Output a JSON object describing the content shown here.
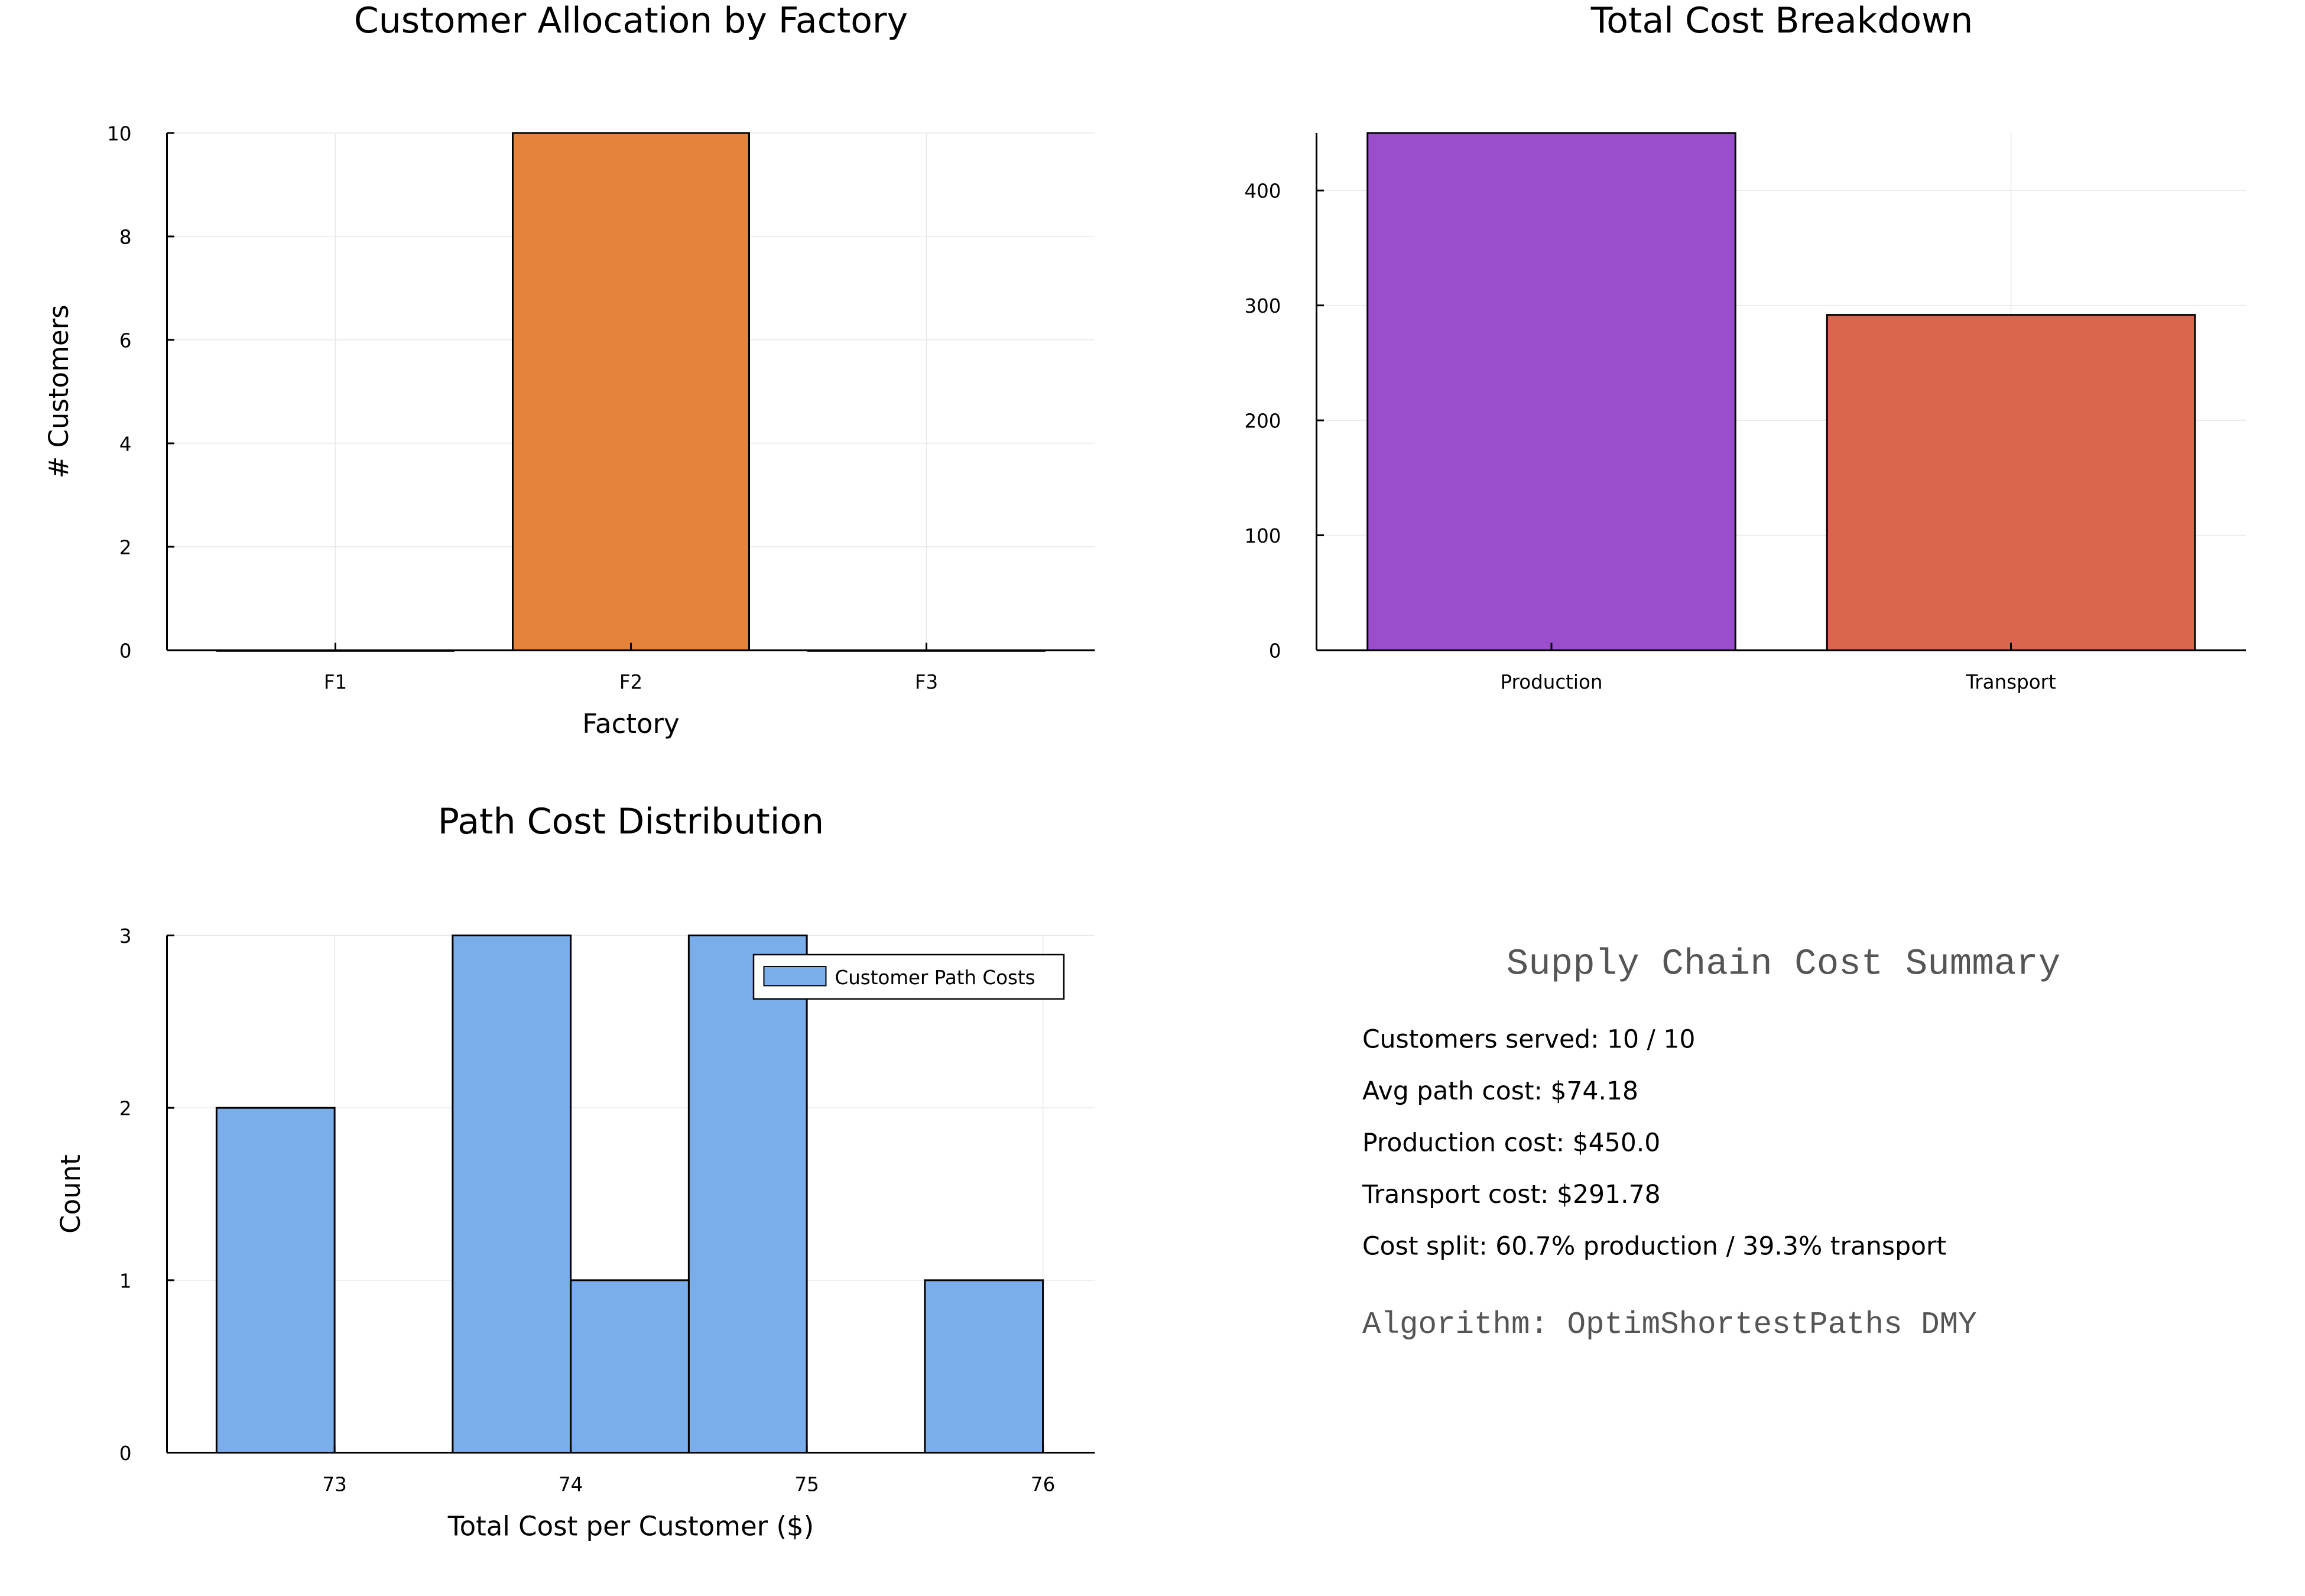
{
  "chart_data": [
    {
      "type": "bar",
      "title": "Customer Allocation by Factory",
      "xlabel": "Factory",
      "ylabel": "# Customers",
      "categories": [
        "F1",
        "F2",
        "F3"
      ],
      "values": [
        0,
        10,
        0
      ],
      "ylim": [
        0,
        10
      ],
      "yticks": [
        0,
        2,
        4,
        6,
        8,
        10
      ],
      "color": "#e6833a",
      "grid": true
    },
    {
      "type": "bar",
      "title": "Total Cost Breakdown",
      "xlabel": "",
      "ylabel": "",
      "categories": [
        "Production",
        "Transport"
      ],
      "values": [
        450.0,
        291.78
      ],
      "colors": [
        "#9a4ecc",
        "#d9664d"
      ],
      "ylim": [
        0,
        450
      ],
      "yticks": [
        0,
        100,
        200,
        300,
        400
      ],
      "grid": true
    },
    {
      "type": "histogram",
      "title": "Path Cost Distribution",
      "xlabel": "Total Cost per Customer ($)",
      "ylabel": "Count",
      "bins": [
        {
          "from": 72.5,
          "to": 73.0,
          "count": 2
        },
        {
          "from": 73.0,
          "to": 73.5,
          "count": 0
        },
        {
          "from": 73.5,
          "to": 74.0,
          "count": 3
        },
        {
          "from": 74.0,
          "to": 74.5,
          "count": 1
        },
        {
          "from": 74.5,
          "to": 75.0,
          "count": 3
        },
        {
          "from": 75.0,
          "to": 75.5,
          "count": 0
        },
        {
          "from": 75.5,
          "to": 76.0,
          "count": 1
        }
      ],
      "xlim": [
        72.29,
        76.22
      ],
      "ylim": [
        0,
        3
      ],
      "xticks": [
        73,
        74,
        75,
        76
      ],
      "yticks": [
        0,
        1,
        2,
        3
      ],
      "legend": {
        "entries": [
          "Customer Path Costs"
        ],
        "placement": "top-right"
      },
      "color": "#7aaeea",
      "grid": true
    }
  ],
  "summary": {
    "title": "Supply Chain Cost Summary",
    "lines": [
      "Customers served: 10 / 10",
      "Avg path cost: $74.18",
      "Production cost: $450.0",
      "Transport cost: $291.78",
      "Cost split: 60.7% production / 39.3% transport"
    ],
    "algorithm": "Algorithm: OptimShortestPaths DMY"
  }
}
